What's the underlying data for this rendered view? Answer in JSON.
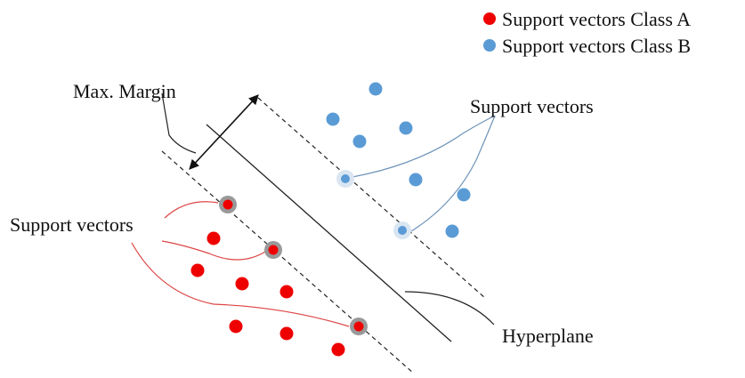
{
  "legend": {
    "class_a": {
      "label": "Support vectors Class A",
      "color": "#ee1111"
    },
    "class_b": {
      "label": "Support vectors Class B",
      "color": "#5b9bd5"
    }
  },
  "labels": {
    "max_margin": "Max. Margin",
    "support_vectors_left": "Support vectors",
    "support_vectors_right": "Support vectors",
    "hyperplane": "Hyperplane"
  },
  "colors": {
    "class_a_point": "#ee0000",
    "class_b_point": "#5b9bd5",
    "class_a_halo": "#999999",
    "class_b_halo": "#d9e6f2",
    "class_a_callout": "#dd4444",
    "class_b_callout": "#6e93b8",
    "line": "#222222"
  }
}
